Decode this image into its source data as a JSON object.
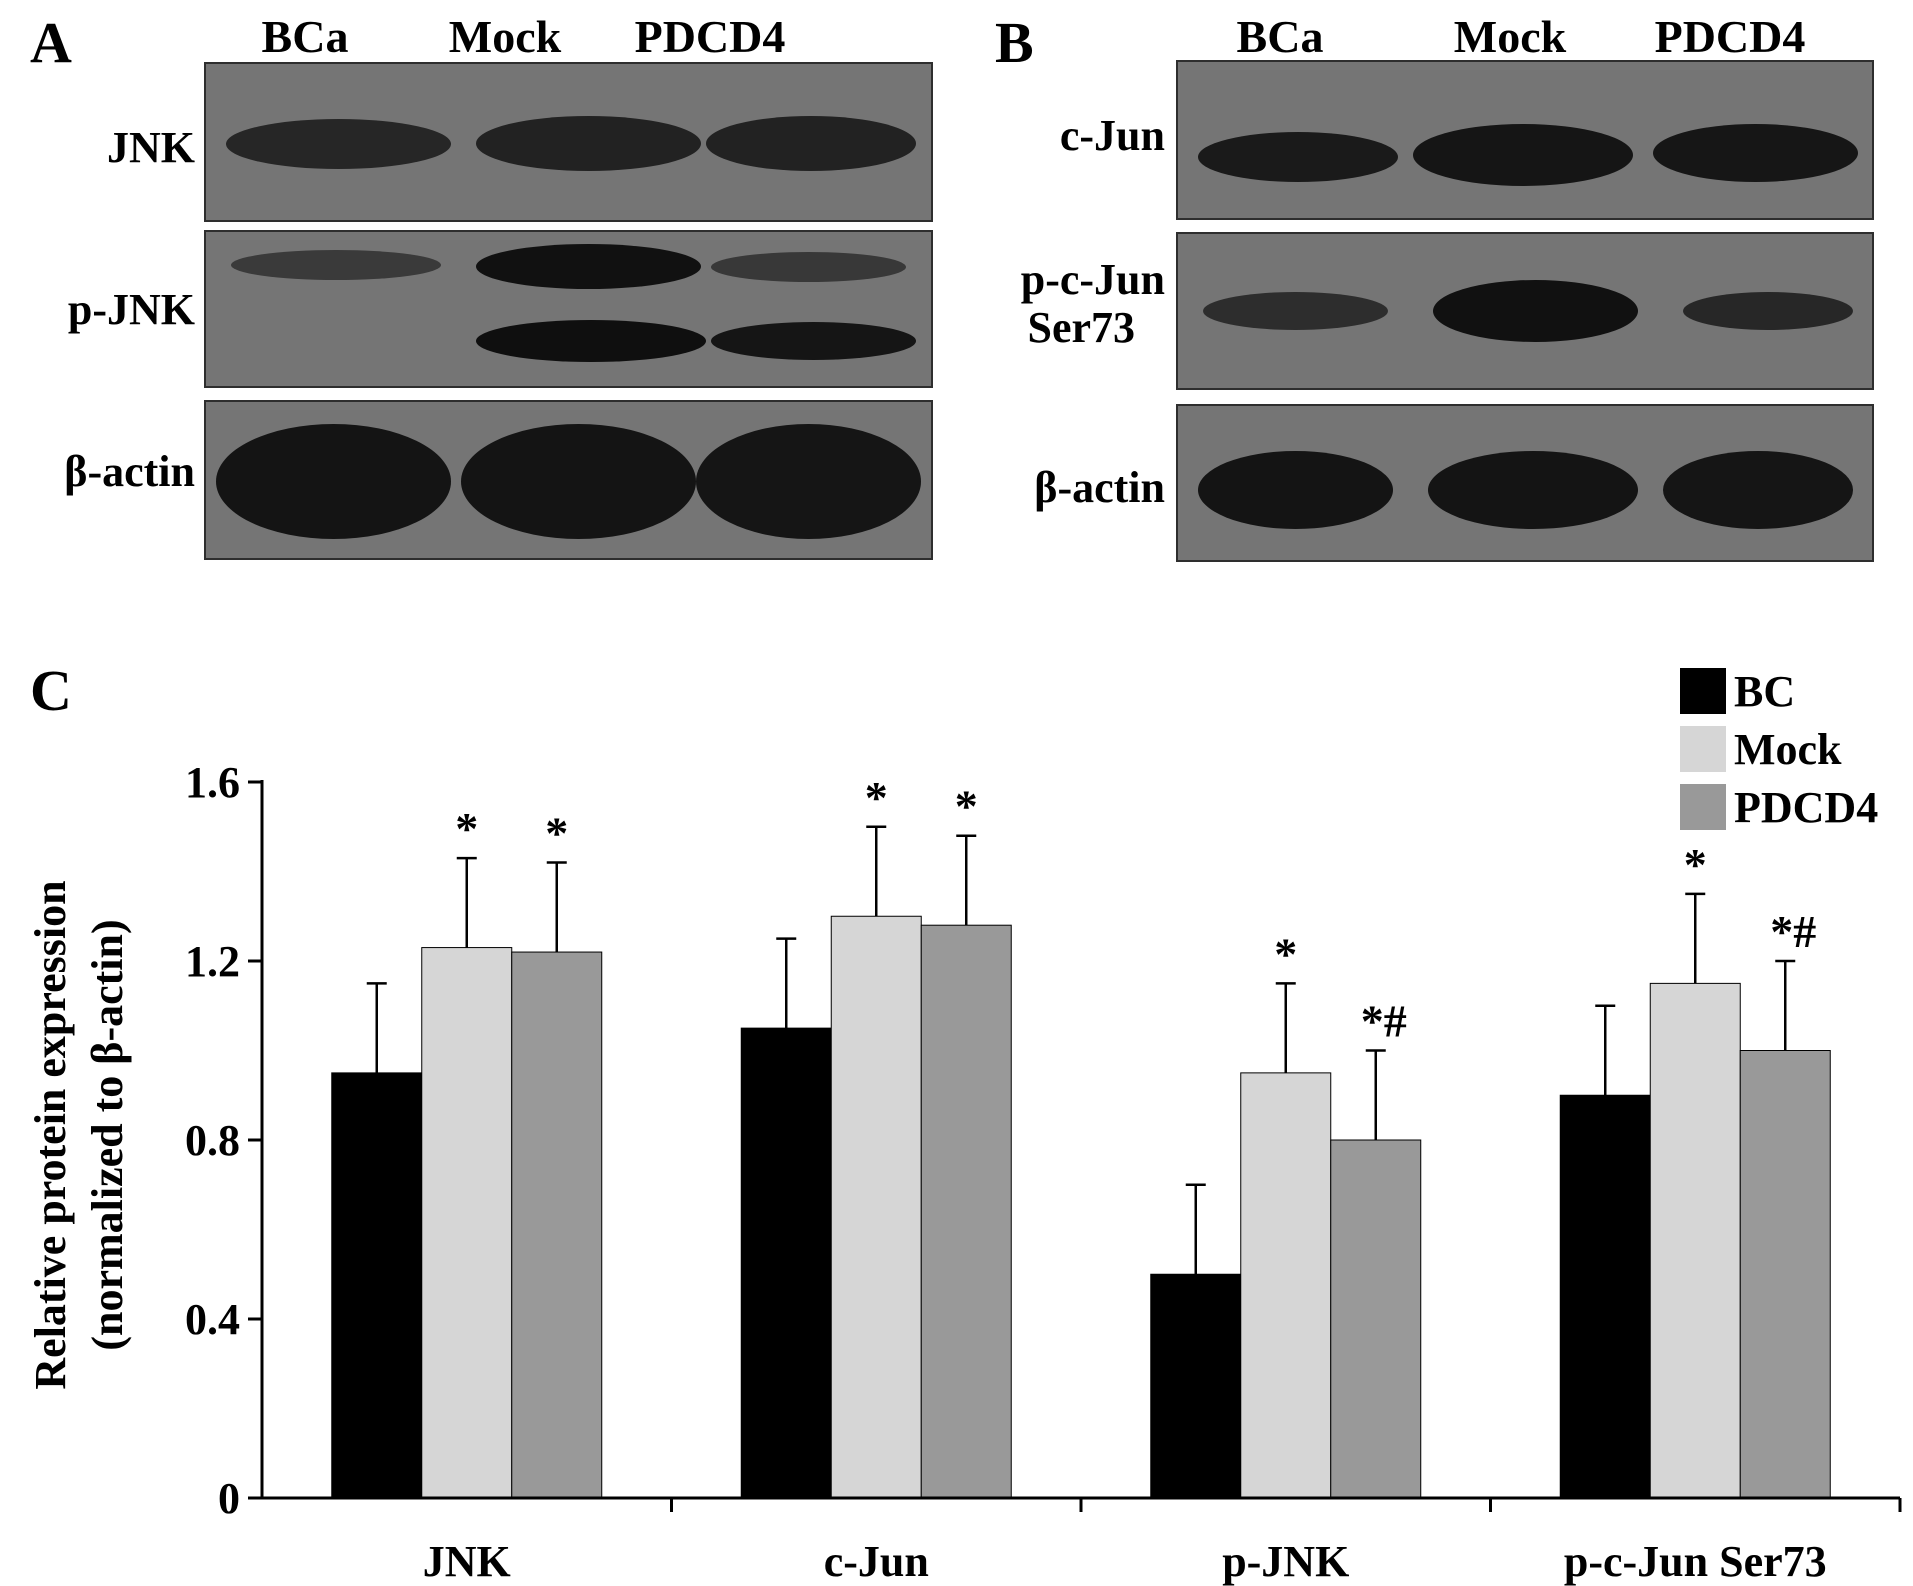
{
  "panel_a": {
    "letter": "A",
    "lanes": [
      "BCa",
      "Mock",
      "PDCD4"
    ],
    "rows": [
      {
        "label": "JNK"
      },
      {
        "label": "p-JNK"
      },
      {
        "label": "β-actin"
      }
    ]
  },
  "panel_b": {
    "letter": "B",
    "lanes": [
      "BCa",
      "Mock",
      "PDCD4"
    ],
    "rows": [
      {
        "label_line1": "c-Jun",
        "label_line2": ""
      },
      {
        "label_line1": "p-c-Jun",
        "label_line2": "Ser73"
      },
      {
        "label_line1": "β-actin",
        "label_line2": ""
      }
    ]
  },
  "panel_c": {
    "letter": "C"
  },
  "chart_data": {
    "type": "bar",
    "ylabel_line1": "Relative protein expression",
    "ylabel_line2": "(normalized to β-actin)",
    "categories": [
      "JNK",
      "c-Jun",
      "p-JNK",
      "p-c-Jun Ser73"
    ],
    "ylim": [
      0,
      1.6
    ],
    "yticks": [
      "0",
      "0.4",
      "0.8",
      "1.2",
      "1.6"
    ],
    "ytick_values": [
      0,
      0.4,
      0.8,
      1.2,
      1.6
    ],
    "legend_position": "top-right",
    "series": [
      {
        "name": "BC",
        "color": "#000000",
        "values": [
          0.95,
          1.05,
          0.5,
          0.9
        ],
        "errors": [
          0.2,
          0.2,
          0.2,
          0.2
        ],
        "marks": [
          "",
          "",
          "",
          ""
        ]
      },
      {
        "name": "Mock",
        "color": "#d6d6d6",
        "values": [
          1.23,
          1.3,
          0.95,
          1.15
        ],
        "errors": [
          0.2,
          0.2,
          0.2,
          0.2
        ],
        "marks": [
          "*",
          "*",
          "*",
          "*"
        ]
      },
      {
        "name": "PDCD4",
        "color": "#999999",
        "values": [
          1.22,
          1.28,
          0.8,
          1.0
        ],
        "errors": [
          0.2,
          0.2,
          0.2,
          0.2
        ],
        "marks": [
          "*",
          "*",
          "*#",
          "*#"
        ]
      }
    ]
  }
}
